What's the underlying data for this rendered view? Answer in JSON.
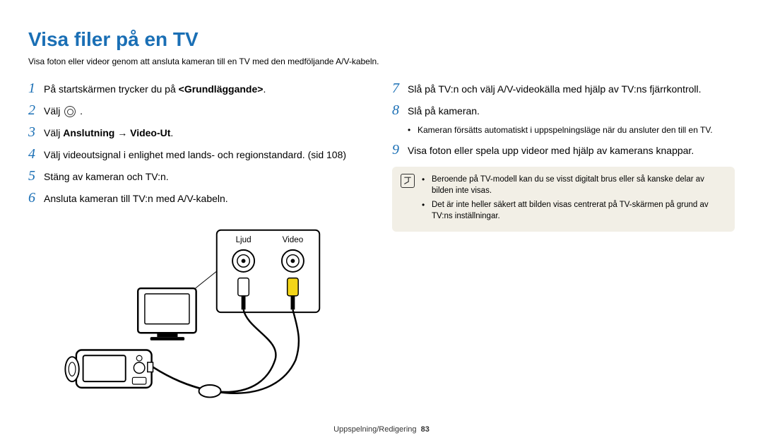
{
  "title": "Visa filer på en TV",
  "intro": "Visa foton eller videor genom att ansluta kameran till en TV med den medföljande A/V-kabeln.",
  "left_steps": [
    {
      "n": "1",
      "html": "På startskärmen trycker du på <b>&lt;Grundläggande&gt;</b>."
    },
    {
      "n": "2",
      "html": "Välj {gear} ."
    },
    {
      "n": "3",
      "html": "Välj <b>Anslutning → Video-Ut</b>."
    },
    {
      "n": "4",
      "html": "Välj videoutsignal i enlighet med lands- och regionstandard. (sid 108)"
    },
    {
      "n": "5",
      "html": "Stäng av kameran och TV:n."
    },
    {
      "n": "6",
      "html": "Ansluta kameran till TV:n med A/V-kabeln."
    }
  ],
  "right_steps": [
    {
      "n": "7",
      "html": "Slå på TV:n och välj A/V-videokälla med hjälp av TV:ns fjärrkontroll."
    },
    {
      "n": "8",
      "html": "Slå på kameran."
    },
    {
      "n": "8sub",
      "html": "Kameran försätts automatiskt i uppspelningsläge när du ansluter den till en TV."
    },
    {
      "n": "9",
      "html": "Visa foton eller spela upp videor med hjälp av kamerans knappar."
    }
  ],
  "note_items": [
    "Beroende på TV-modell kan du se visst digitalt brus eller så kanske delar av bilden inte visas.",
    "Det är inte heller säkert att bilden visas centrerat på TV-skärmen på grund av TV:ns inställningar."
  ],
  "diagram_labels": {
    "audio": "Ljud",
    "video": "Video"
  },
  "footer": {
    "section": "Uppspelning/Redigering",
    "page": "83"
  },
  "colors": {
    "heading": "#1a6fb5",
    "note_bg": "#f2efe6",
    "video_plug": "#f3d518",
    "audio_plug": "#ffffff"
  }
}
